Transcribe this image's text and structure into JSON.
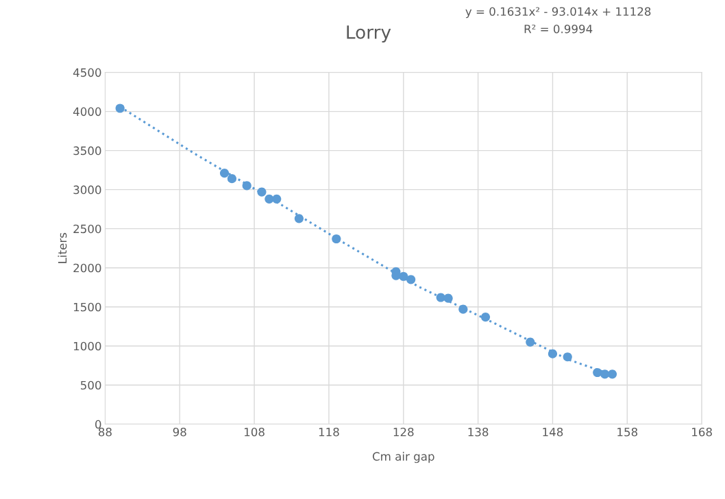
{
  "chart_data": {
    "type": "scatter",
    "title": "Lorry",
    "xlabel": "Cm air gap",
    "ylabel": "Liters",
    "xlim": [
      88,
      168
    ],
    "xticks": [
      88,
      98,
      108,
      118,
      128,
      138,
      148,
      158,
      168
    ],
    "ylim": [
      0,
      4500
    ],
    "yticks": [
      0,
      500,
      1000,
      1500,
      2000,
      2500,
      3000,
      3500,
      4000,
      4500
    ],
    "grid": true,
    "legend": false,
    "annotations": [
      "y = 0.1631x² - 93.014x + 11128",
      "R² = 0.9994"
    ],
    "series": [
      {
        "color": "#5b9bd5",
        "marker": "circle",
        "x": [
          90,
          104,
          105,
          107,
          109,
          110,
          111,
          114,
          119,
          127,
          127,
          128,
          129,
          133,
          134,
          136,
          139,
          145,
          148,
          150,
          154,
          155,
          156
        ],
        "values": [
          4040,
          3210,
          3140,
          3050,
          2970,
          2880,
          2880,
          2630,
          2370,
          1950,
          1900,
          1890,
          1850,
          1620,
          1610,
          1470,
          1370,
          1050,
          900,
          860,
          660,
          640,
          640
        ]
      },
      {
        "type": "line",
        "color": "#5b9bd5",
        "line_style": "dotted",
        "marker": "none",
        "x": [
          90,
          100,
          110,
          120,
          130,
          140,
          150,
          156
        ],
        "values": [
          4060,
          3460,
          2900,
          2320,
          1760,
          1300,
          830,
          630
        ]
      }
    ]
  }
}
